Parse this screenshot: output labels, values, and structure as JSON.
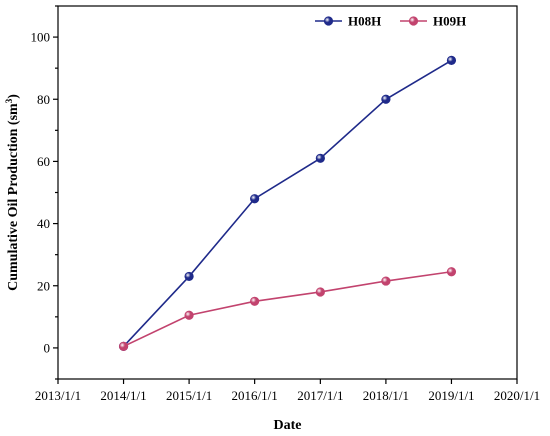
{
  "chart_data": {
    "type": "line",
    "xlabel": "Date",
    "ylabel": "Cumulative Oil Production (sm",
    "ylabel_sup": "3",
    "ylabel_close": ")",
    "x_ticks": [
      "2013/1/1",
      "2014/1/1",
      "2015/1/1",
      "2016/1/1",
      "2017/1/1",
      "2018/1/1",
      "2019/1/1",
      "2020/1/1"
    ],
    "xlim": [
      "2013/1/1",
      "2020/1/1"
    ],
    "y_ticks": [
      "0",
      "20",
      "40",
      "60",
      "80",
      "100"
    ],
    "ylim": [
      -10,
      110
    ],
    "grid": false,
    "legend_position": "top-right",
    "x": [
      "2014/1/1",
      "2015/1/1",
      "2016/1/1",
      "2017/1/1",
      "2018/1/1",
      "2019/1/1"
    ],
    "series": [
      {
        "name": "H08H",
        "color": "#1f2a8a",
        "values": [
          0.5,
          23,
          48,
          61,
          80,
          92.5
        ]
      },
      {
        "name": "H09H",
        "color": "#c2436e",
        "values": [
          0.5,
          10.5,
          15,
          18,
          21.5,
          24.5
        ]
      }
    ]
  }
}
